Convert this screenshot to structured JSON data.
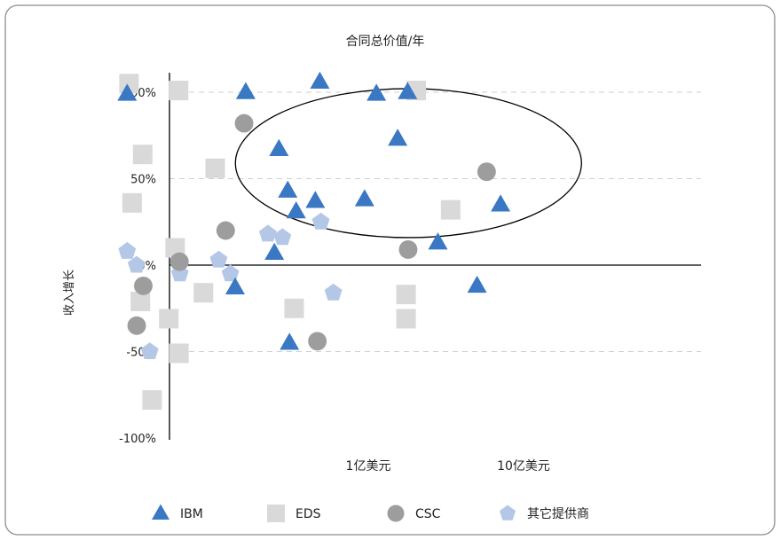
{
  "chart_data": {
    "type": "scatter",
    "title": "合同总价值/年",
    "ylabel": "收入增长",
    "xlabel": "",
    "ylim": [
      -100,
      110
    ],
    "y_ticks": [
      {
        "value": 100,
        "label": "100%"
      },
      {
        "value": 50,
        "label": "50%"
      },
      {
        "value": 0,
        "label": "0%"
      },
      {
        "value": -50,
        "label": "-50%"
      },
      {
        "value": -100,
        "label": "-100%"
      }
    ],
    "x_scale": "log",
    "x_ticks": [
      {
        "value": 1,
        "label": "1亿美元"
      },
      {
        "value": 10,
        "label": "10亿美元"
      }
    ],
    "grid": "horizontal dashed",
    "legend_position": "bottom",
    "series": [
      {
        "name": "IBM",
        "marker": "triangle",
        "color": "#3a78c3",
        "points": [
          {
            "x": 0.0355,
            "y": 99
          },
          {
            "x": 0.206,
            "y": 100
          },
          {
            "x": 0.337,
            "y": 67
          },
          {
            "x": 0.384,
            "y": 43
          },
          {
            "x": 0.435,
            "y": 31
          },
          {
            "x": 0.618,
            "y": 106
          },
          {
            "x": 0.578,
            "y": 37
          },
          {
            "x": 0.315,
            "y": 7
          },
          {
            "x": 0.176,
            "y": -13
          },
          {
            "x": 0.394,
            "y": -45
          },
          {
            "x": 1.43,
            "y": 99
          },
          {
            "x": 1.2,
            "y": 38
          },
          {
            "x": 2.27,
            "y": 100
          },
          {
            "x": 1.96,
            "y": 73
          },
          {
            "x": 3.56,
            "y": 13
          },
          {
            "x": 6.36,
            "y": -12
          },
          {
            "x": 9.01,
            "y": 35
          }
        ]
      },
      {
        "name": "EDS",
        "marker": "square",
        "color": "#d9d9d9",
        "points": [
          {
            "x": 0.0365,
            "y": 105
          },
          {
            "x": 0.0761,
            "y": 101
          },
          {
            "x": 0.0447,
            "y": 64
          },
          {
            "x": 0.0382,
            "y": 36
          },
          {
            "x": 0.131,
            "y": 56
          },
          {
            "x": 0.0723,
            "y": 10
          },
          {
            "x": 0.0432,
            "y": -21
          },
          {
            "x": 0.0658,
            "y": -31
          },
          {
            "x": 0.11,
            "y": -16
          },
          {
            "x": 0.0765,
            "y": -51
          },
          {
            "x": 0.0514,
            "y": -78
          },
          {
            "x": 0.422,
            "y": -25
          },
          {
            "x": 2.58,
            "y": 101
          },
          {
            "x": 2.22,
            "y": -17
          },
          {
            "x": 2.22,
            "y": -31
          },
          {
            "x": 4.3,
            "y": 32
          }
        ]
      },
      {
        "name": "CSC",
        "marker": "circle",
        "color": "#9d9d9d",
        "points": [
          {
            "x": 0.201,
            "y": 82
          },
          {
            "x": 0.153,
            "y": 20
          },
          {
            "x": 0.0771,
            "y": 2
          },
          {
            "x": 0.0451,
            "y": -12
          },
          {
            "x": 0.0409,
            "y": -35
          },
          {
            "x": 0.596,
            "y": -44
          },
          {
            "x": 2.29,
            "y": 9
          },
          {
            "x": 7.33,
            "y": 54
          }
        ]
      },
      {
        "name": "其它提供商",
        "marker": "pentagon",
        "color": "#b4c7e7",
        "points": [
          {
            "x": 0.0355,
            "y": 8
          },
          {
            "x": 0.0408,
            "y": 0
          },
          {
            "x": 0.0776,
            "y": -5
          },
          {
            "x": 0.0496,
            "y": -50
          },
          {
            "x": 0.138,
            "y": 3
          },
          {
            "x": 0.164,
            "y": -5
          },
          {
            "x": 0.286,
            "y": 18
          },
          {
            "x": 0.355,
            "y": 16
          },
          {
            "x": 0.627,
            "y": 25
          },
          {
            "x": 0.755,
            "y": -16
          }
        ]
      }
    ],
    "annotations": [
      {
        "type": "ellipse",
        "x_center": 2.3,
        "y_center": 59,
        "note": "highlighted cluster"
      }
    ]
  }
}
